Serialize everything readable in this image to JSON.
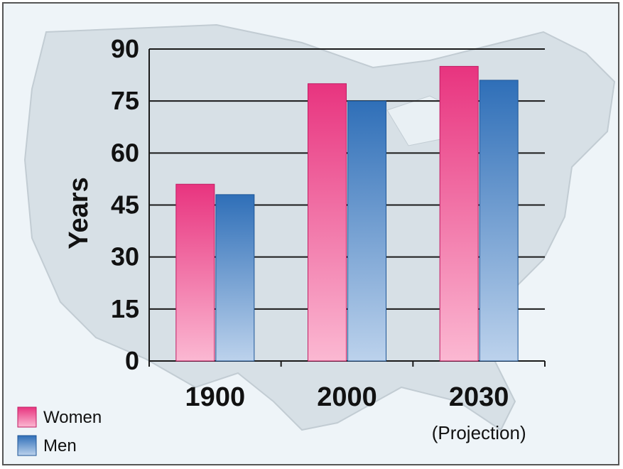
{
  "chart_data": {
    "type": "bar",
    "categories": [
      "1900",
      "2000",
      "2030"
    ],
    "category_notes": [
      "",
      "",
      "(Projection)"
    ],
    "series": [
      {
        "name": "Women",
        "values": [
          51,
          80,
          85
        ],
        "color": "#e8347f"
      },
      {
        "name": "Men",
        "values": [
          48,
          75,
          81
        ],
        "color": "#2f6fb8"
      }
    ],
    "ylabel": "Years",
    "xlabel": "",
    "title": "",
    "ylim": [
      0,
      90
    ],
    "yticks": [
      0,
      15,
      30,
      45,
      60,
      75,
      90
    ],
    "grid": true,
    "legend_position": "bottom-left",
    "background": "map of the United States"
  }
}
